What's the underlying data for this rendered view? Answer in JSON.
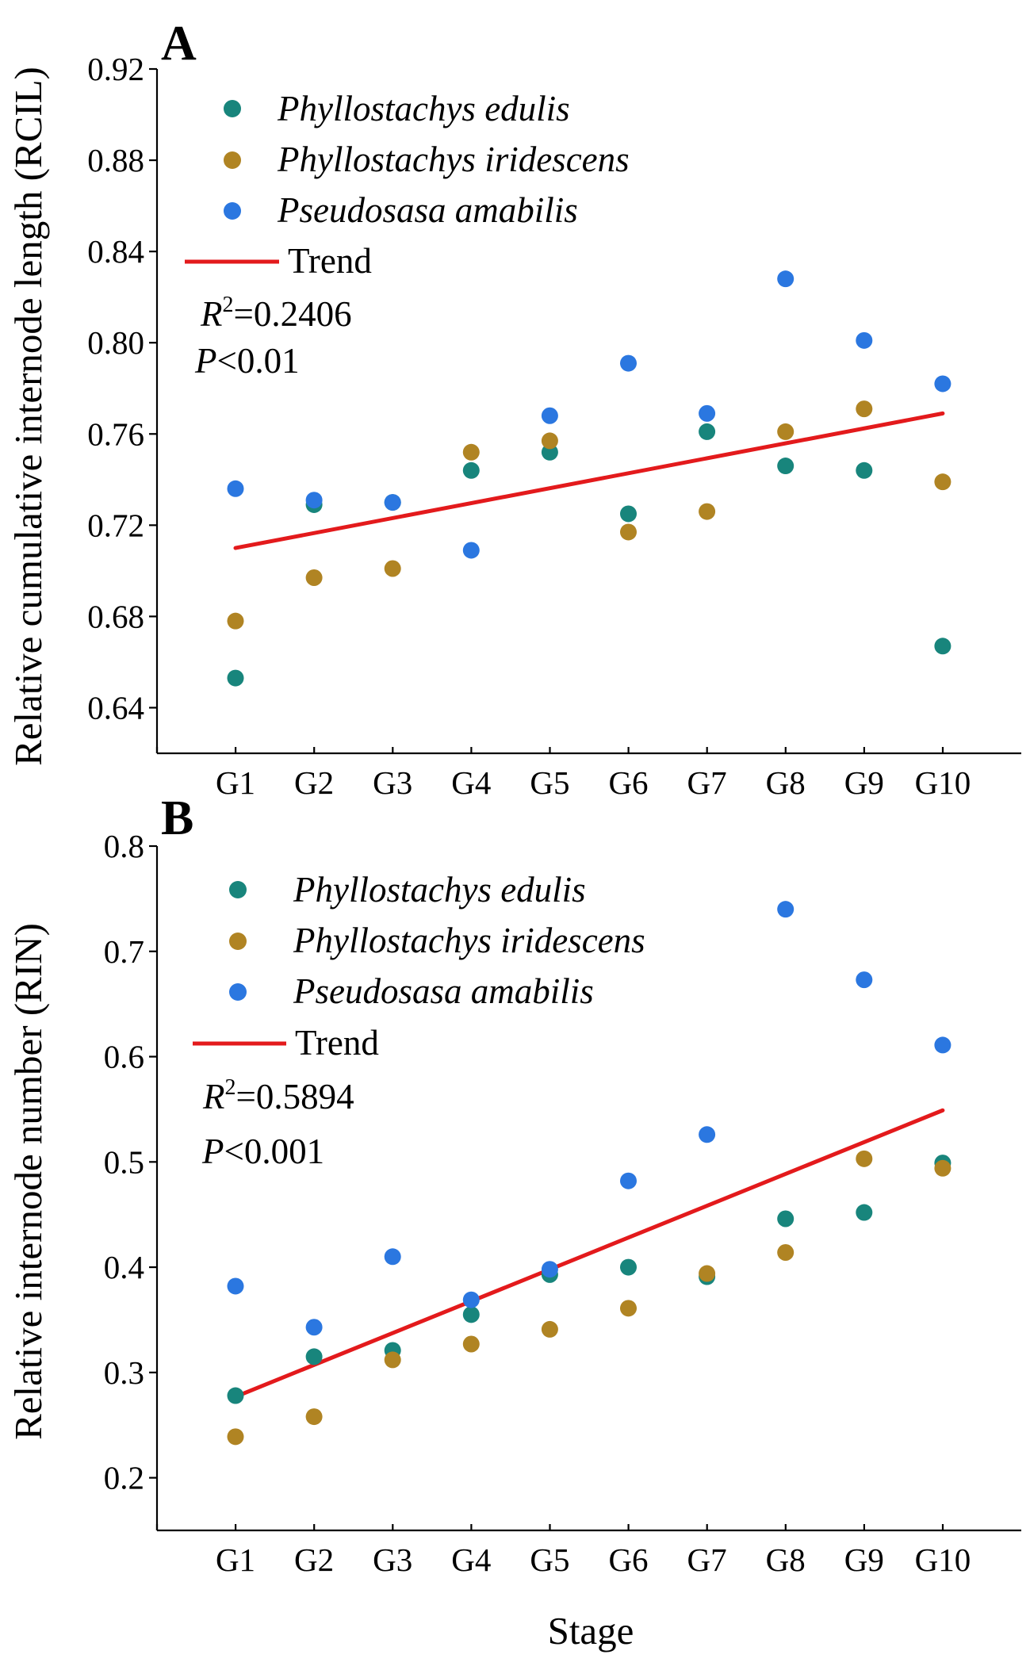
{
  "figure": {
    "x_axis_title": "Stage"
  },
  "colors": {
    "edulis": "#18857c",
    "iridescens": "#b08423",
    "amabilis": "#2b77e0",
    "trend": "#e31a1c"
  },
  "chart_data": [
    {
      "panel": "A",
      "type": "scatter",
      "ylabel": "Relative cumulative internode length (RCIL)",
      "xlabel": "",
      "categories": [
        "G1",
        "G2",
        "G3",
        "G4",
        "G5",
        "G6",
        "G7",
        "G8",
        "G9",
        "G10"
      ],
      "ylim": [
        0.62,
        0.92
      ],
      "yticks": [
        "0.64",
        "0.68",
        "0.72",
        "0.76",
        "0.80",
        "0.84",
        "0.88",
        "0.92"
      ],
      "series": [
        {
          "name": "Phyllostachys edulis",
          "color_key": "edulis",
          "values": [
            0.653,
            0.729,
            0.73,
            0.744,
            0.752,
            0.725,
            0.761,
            0.746,
            0.744,
            0.667
          ]
        },
        {
          "name": "Phyllostachys iridescens",
          "color_key": "iridescens",
          "values": [
            0.678,
            0.697,
            0.701,
            0.752,
            0.757,
            0.717,
            0.726,
            0.761,
            0.771,
            0.739
          ]
        },
        {
          "name": "Pseudosasa amabilis",
          "color_key": "amabilis",
          "values": [
            0.736,
            0.731,
            0.73,
            0.709,
            0.768,
            0.791,
            0.769,
            0.828,
            0.801,
            0.782
          ]
        }
      ],
      "trend": {
        "label": "Trend",
        "start": 0.71,
        "end": 0.769
      },
      "stats": {
        "r2_symbol": "R",
        "r2_sup": "2",
        "r2_value": "=0.2406",
        "p_symbol": "P",
        "p_value": "<0.01"
      }
    },
    {
      "panel": "B",
      "type": "scatter",
      "ylabel": "Relative internode number (RIN)",
      "xlabel": "Stage",
      "categories": [
        "G1",
        "G2",
        "G3",
        "G4",
        "G5",
        "G6",
        "G7",
        "G8",
        "G9",
        "G10"
      ],
      "ylim": [
        0.15,
        0.8
      ],
      "yticks": [
        "0.2",
        "0.3",
        "0.4",
        "0.5",
        "0.6",
        "0.7",
        "0.8"
      ],
      "series": [
        {
          "name": "Phyllostachys edulis",
          "color_key": "edulis",
          "values": [
            0.278,
            0.315,
            0.321,
            0.355,
            0.393,
            0.4,
            0.391,
            0.446,
            0.452,
            0.499
          ]
        },
        {
          "name": "Phyllostachys iridescens",
          "color_key": "iridescens",
          "values": [
            0.239,
            0.258,
            0.312,
            0.327,
            0.341,
            0.361,
            0.394,
            0.414,
            0.503,
            0.494
          ]
        },
        {
          "name": "Pseudosasa amabilis",
          "color_key": "amabilis",
          "values": [
            0.382,
            0.343,
            0.41,
            0.369,
            0.398,
            0.482,
            0.526,
            0.74,
            0.673,
            0.611
          ]
        }
      ],
      "trend": {
        "label": "Trend",
        "start": 0.277,
        "end": 0.549
      },
      "stats": {
        "r2_symbol": "R",
        "r2_sup": "2",
        "r2_value": "=0.5894",
        "p_symbol": "P",
        "p_value": "<0.001"
      }
    }
  ]
}
